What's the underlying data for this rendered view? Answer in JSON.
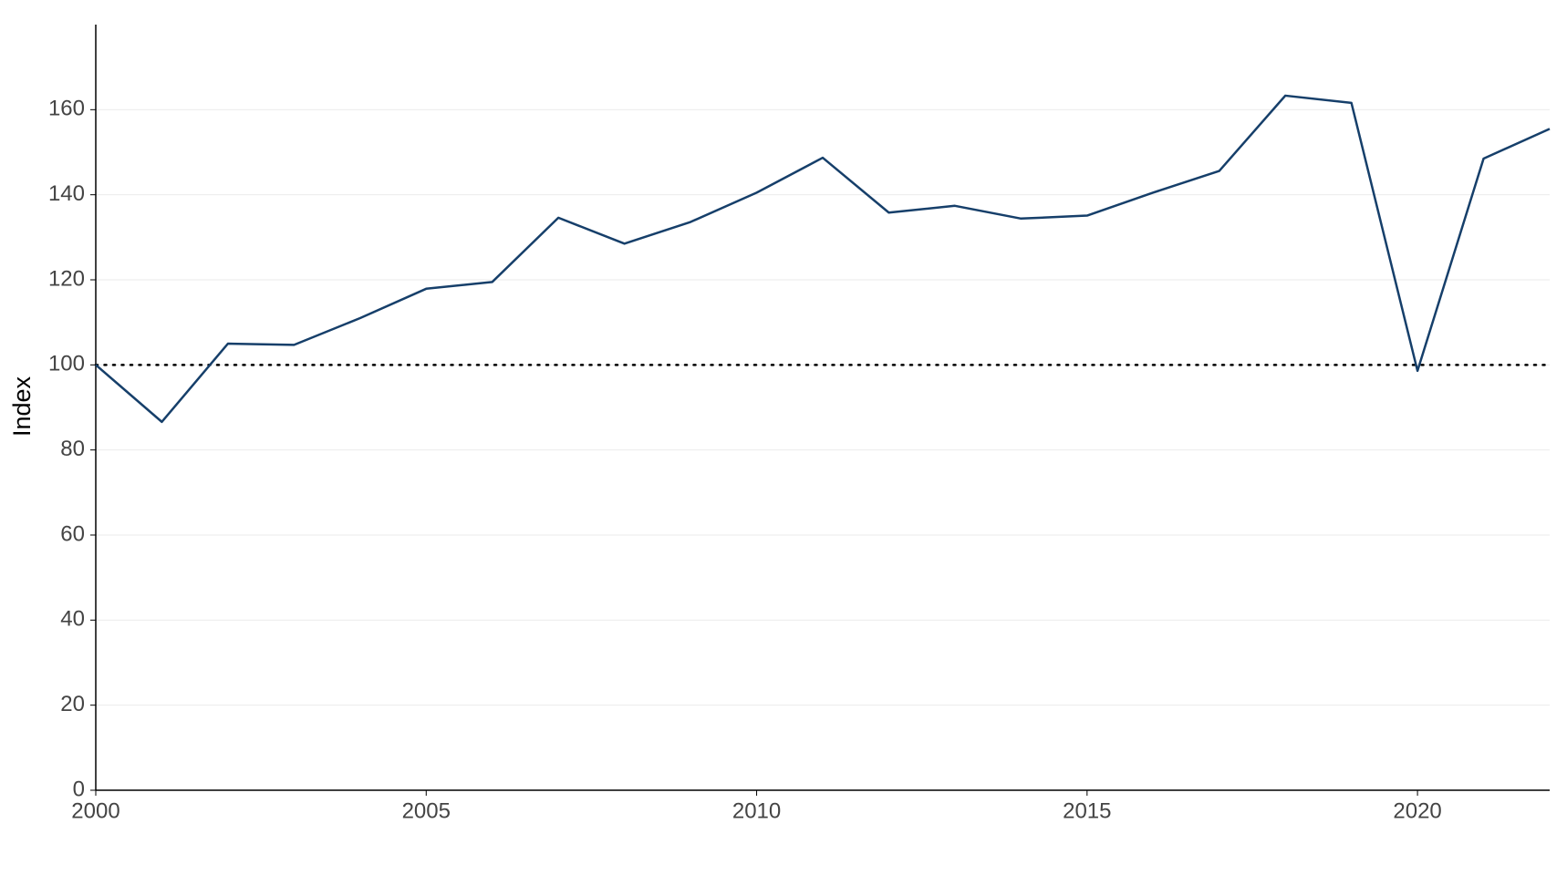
{
  "chart_data": {
    "type": "line",
    "ylabel": "Index",
    "x": [
      2000,
      2001,
      2002,
      2003,
      2004,
      2005,
      2006,
      2007,
      2008,
      2009,
      2010,
      2011,
      2012,
      2013,
      2014,
      2015,
      2016,
      2017,
      2018,
      2019,
      2020,
      2021,
      2022
    ],
    "series": [
      {
        "color": "#163f6a",
        "values": [
          100,
          86.6,
          105,
          104.7,
          111,
          117.9,
          119.5,
          134.6,
          128.5,
          133.6,
          140.5,
          148.7,
          135.8,
          137.4,
          134.4,
          135.1,
          140.5,
          145.6,
          163.3,
          161.6,
          98.6,
          148.5,
          155.5
        ]
      }
    ],
    "xlim": [
      2000,
      2022
    ],
    "xticks": [
      2000,
      2005,
      2010,
      2015,
      2020
    ],
    "ylim": [
      0,
      180
    ],
    "yticks": [
      0,
      20,
      40,
      60,
      80,
      100,
      120,
      140,
      160
    ],
    "grid": true,
    "reference_line": 100
  }
}
